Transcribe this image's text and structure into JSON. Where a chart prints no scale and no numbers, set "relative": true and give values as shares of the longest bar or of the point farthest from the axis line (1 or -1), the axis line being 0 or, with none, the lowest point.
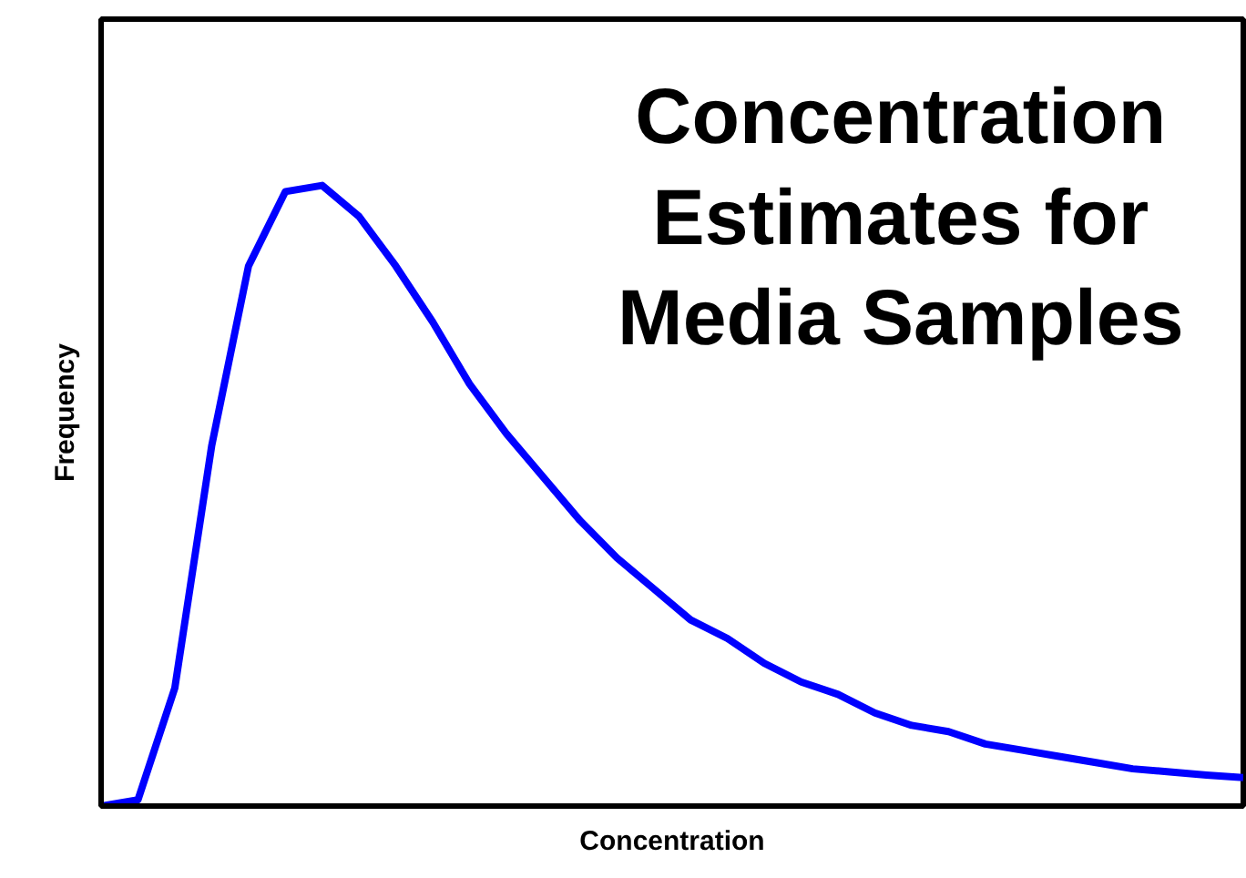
{
  "chart_data": {
    "type": "line",
    "title": "Concentration\nEstimates for\nMedia Samples",
    "xlabel": "Concentration",
    "ylabel": "Frequency",
    "relative": true,
    "categories": [
      null,
      null,
      null,
      null,
      null,
      null,
      null,
      null,
      null,
      null,
      null,
      null,
      null,
      null,
      null,
      null,
      null,
      null,
      null,
      null,
      null,
      null,
      null,
      null,
      null,
      null,
      null,
      null,
      null,
      null,
      null,
      null
    ],
    "series": [
      {
        "color": "#0000ff",
        "values": [
          0,
          0.01,
          0.19,
          0.58,
          0.87,
          0.99,
          1.0,
          0.95,
          0.87,
          0.78,
          0.68,
          0.6,
          0.53,
          0.46,
          0.4,
          0.35,
          0.3,
          0.27,
          0.23,
          0.2,
          0.18,
          0.15,
          0.13,
          0.12,
          0.1,
          0.09,
          0.08,
          0.07,
          0.06,
          0.055,
          0.05,
          0.046
        ]
      }
    ],
    "grid": false,
    "marker": "none",
    "line_style": "solid"
  }
}
